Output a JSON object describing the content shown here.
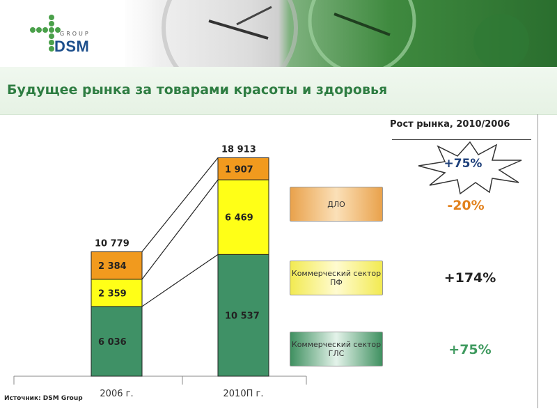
{
  "brand": {
    "logo_name": "DSM",
    "logo_sub": "GROUP"
  },
  "title": "Будущее рынка за товарами красоты и здоровья",
  "source": "Источник: DSM Group",
  "chart_data": {
    "type": "bar",
    "stacked": true,
    "categories": [
      "2006 г.",
      "2010П г."
    ],
    "totals": [
      "10 779",
      "18 913"
    ],
    "series": [
      {
        "key": "gls",
        "values": [
          6036,
          10537
        ],
        "labels": [
          "6 036",
          "10 537"
        ],
        "color": "#3f9166"
      },
      {
        "key": "pf",
        "values": [
          2359,
          6469
        ],
        "labels": [
          "2 359",
          "6 469"
        ],
        "color": "#ffff17"
      },
      {
        "key": "dlo",
        "values": [
          2384,
          1907
        ],
        "labels": [
          "2 384",
          "1 907"
        ],
        "color": "#f19a1e"
      }
    ]
  },
  "legend": [
    {
      "key": "dlo",
      "label": "ДЛО",
      "growth": "-20%"
    },
    {
      "key": "pf",
      "label": "Коммерческий сектор ПФ",
      "growth": "+174%"
    },
    {
      "key": "gls",
      "label": "Коммерческий сектор ГЛС",
      "growth": "+75%"
    }
  ],
  "growth_panel": {
    "header": "Рост рынка, 2010/2006",
    "total_growth": "+75%"
  }
}
